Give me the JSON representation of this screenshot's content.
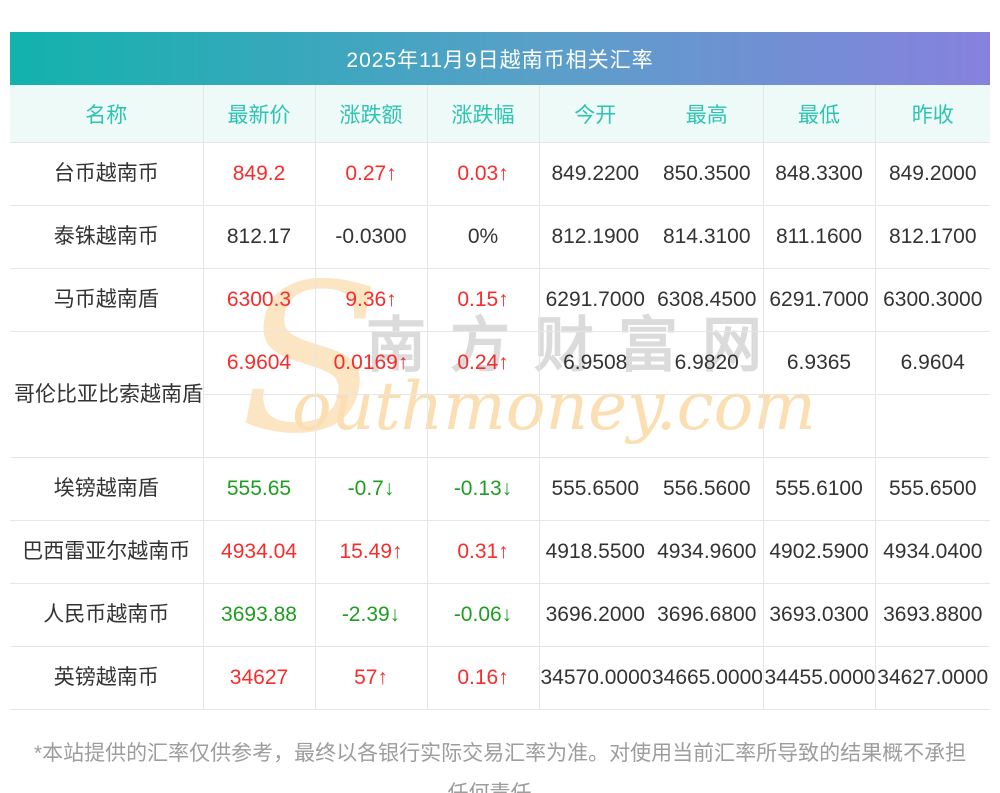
{
  "title": "2025年11月9日越南币相关汇率",
  "watermark": {
    "s": "S",
    "cn": "南方财富网",
    "en": "outhmoney.com"
  },
  "table": {
    "columns": [
      "名称",
      "最新价",
      "涨跌额",
      "涨跌幅",
      "今开",
      "最高",
      "最低",
      "昨收"
    ],
    "rows": [
      {
        "name": "台币越南币",
        "last": "849.2",
        "change": "0.27↑",
        "pct": "0.03↑",
        "open": "849.2200",
        "high": "850.3500",
        "low": "848.3300",
        "prev": "849.2000",
        "trend": "up"
      },
      {
        "name": "泰铢越南币",
        "last": "812.17",
        "change": "-0.0300",
        "pct": "0%",
        "open": "812.1900",
        "high": "814.3100",
        "low": "811.1600",
        "prev": "812.1700",
        "trend": "flat"
      },
      {
        "name": "马币越南盾",
        "last": "6300.3",
        "change": "9.36↑",
        "pct": "0.15↑",
        "open": "6291.7000",
        "high": "6308.4500",
        "low": "6291.7000",
        "prev": "6300.3000",
        "trend": "up"
      },
      {
        "name": "哥伦比亚比索越南盾",
        "last": "6.9604",
        "change": "0.0169↑",
        "pct": "0.24↑",
        "open": "6.9508",
        "high": "6.9820",
        "low": "6.9365",
        "prev": "6.9604",
        "trend": "up",
        "tall": true
      },
      {
        "name": "埃镑越南盾",
        "last": "555.65",
        "change": "-0.7↓",
        "pct": "-0.13↓",
        "open": "555.6500",
        "high": "556.5600",
        "low": "555.6100",
        "prev": "555.6500",
        "trend": "down"
      },
      {
        "name": "巴西雷亚尔越南币",
        "last": "4934.04",
        "change": "15.49↑",
        "pct": "0.31↑",
        "open": "4918.5500",
        "high": "4934.9600",
        "low": "4902.5900",
        "prev": "4934.0400",
        "trend": "up"
      },
      {
        "name": "人民币越南币",
        "last": "3693.88",
        "change": "-2.39↓",
        "pct": "-0.06↓",
        "open": "3696.2000",
        "high": "3696.6800",
        "low": "3693.0300",
        "prev": "3693.8800",
        "trend": "down"
      },
      {
        "name": "英镑越南币",
        "last": "34627",
        "change": "57↑",
        "pct": "0.16↑",
        "open": "34570.0000",
        "high": "34665.0000",
        "low": "34455.0000",
        "prev": "34627.0000",
        "trend": "up"
      }
    ]
  },
  "footer": "*本站提供的汇率仅供参考，最终以各银行实际交易汇率为准。对使用当前汇率所导致的结果概不承担任何责任。",
  "colors": {
    "up": "#f92c2c",
    "down": "#1e9e21",
    "flat": "#333333",
    "gradient_start": "#12b2ad",
    "gradient_end": "#8781de",
    "header_bg": "#edfaf7",
    "header_text": "#2fc3b3"
  }
}
